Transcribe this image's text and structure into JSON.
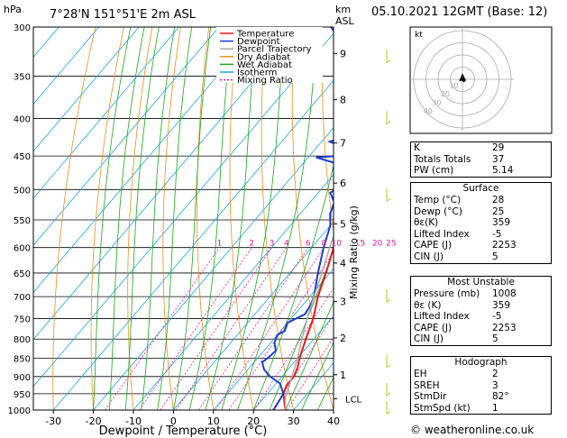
{
  "header": {
    "units_p": "hPa",
    "location": "7°28'N  151°51'E  2m  ASL",
    "units_km": "km",
    "units_asl": "ASL",
    "date": "05.10.2021  12GMT  (Base: 12)"
  },
  "chart_data": {
    "type": "line",
    "xlabel": "Dewpoint / Temperature (°C)",
    "mixing_label": "Mixing Ratio (g/kg)",
    "pressure_levels": [
      300,
      350,
      400,
      450,
      500,
      550,
      600,
      650,
      700,
      750,
      800,
      850,
      900,
      950,
      1000
    ],
    "temp_ticks": [
      -30,
      -20,
      -10,
      0,
      10,
      20,
      30,
      40
    ],
    "xlim": [
      -35,
      40
    ],
    "ylim": [
      1000,
      300
    ],
    "height_ticks": [
      {
        "label": "9",
        "p": 326
      },
      {
        "label": "8",
        "p": 377
      },
      {
        "label": "7",
        "p": 432
      },
      {
        "label": "6",
        "p": 490
      },
      {
        "label": "5",
        "p": 557
      },
      {
        "label": "4",
        "p": 630
      },
      {
        "label": "3",
        "p": 711
      },
      {
        "label": "2",
        "p": 797
      },
      {
        "label": "1",
        "p": 895
      }
    ],
    "lcl": {
      "label": "LCL",
      "p": 965
    },
    "mixing_ratio_labels": [
      "1",
      "2",
      "3",
      "4",
      "6",
      "8",
      "10",
      "15",
      "20",
      "25"
    ],
    "mixing_ratio_values": [
      1,
      2,
      3,
      4,
      6,
      8,
      10,
      15,
      20,
      25
    ],
    "legend": [
      "Temperature",
      "Dewpoint",
      "Parcel Trajectory",
      "Dry Adiabat",
      "Wet Adiabat",
      "Isotherm",
      "Mixing Ratio"
    ],
    "series": [
      {
        "name": "Temperature",
        "color": "#e8191b",
        "points": [
          [
            1000,
            28
          ],
          [
            975,
            26
          ],
          [
            950,
            24
          ],
          [
            925,
            23
          ],
          [
            900,
            23
          ],
          [
            875,
            22
          ],
          [
            850,
            20.5
          ],
          [
            800,
            18
          ],
          [
            750,
            15.5
          ],
          [
            700,
            12
          ],
          [
            650,
            9
          ],
          [
            600,
            5.5
          ],
          [
            550,
            2
          ],
          [
            500,
            -2.5
          ],
          [
            450,
            -8
          ],
          [
            400,
            -14.5
          ],
          [
            350,
            -23
          ],
          [
            300,
            -32
          ]
        ]
      },
      {
        "name": "Dewpoint",
        "color": "#1c3fd1",
        "points": [
          [
            1000,
            25
          ],
          [
            950,
            24
          ],
          [
            920,
            21
          ],
          [
            900,
            17
          ],
          [
            880,
            14
          ],
          [
            860,
            12
          ],
          [
            850,
            12.5
          ],
          [
            830,
            13
          ],
          [
            810,
            11
          ],
          [
            790,
            10
          ],
          [
            780,
            11
          ],
          [
            760,
            10
          ],
          [
            740,
            12.5
          ],
          [
            720,
            12
          ],
          [
            700,
            11
          ],
          [
            650,
            7
          ],
          [
            600,
            3
          ],
          [
            560,
            0
          ],
          [
            540,
            -2.5
          ],
          [
            520,
            -4
          ],
          [
            505,
            -7
          ],
          [
            495,
            -5.5
          ],
          [
            480,
            -7
          ],
          [
            470,
            -11
          ],
          [
            460,
            -12
          ],
          [
            452,
            -18
          ],
          [
            448,
            -8
          ],
          [
            440,
            -12
          ],
          [
            430,
            -18
          ],
          [
            420,
            -13
          ],
          [
            410,
            -17
          ],
          [
            400,
            -19
          ],
          [
            385,
            -22
          ],
          [
            370,
            -25
          ],
          [
            355,
            -27
          ],
          [
            345,
            -27.5
          ],
          [
            330,
            -29
          ],
          [
            310,
            -38
          ],
          [
            300,
            -42
          ]
        ]
      },
      {
        "name": "Parcel Trajectory",
        "color": "#aaaaaa",
        "points": [
          [
            1000,
            28
          ],
          [
            965,
            25.5
          ],
          [
            900,
            22.5
          ],
          [
            850,
            20
          ],
          [
            800,
            17
          ],
          [
            750,
            14
          ],
          [
            700,
            11
          ],
          [
            650,
            8
          ],
          [
            600,
            4.5
          ],
          [
            550,
            1
          ],
          [
            500,
            -3.5
          ],
          [
            450,
            -8.5
          ],
          [
            400,
            -14
          ],
          [
            350,
            -21
          ],
          [
            300,
            -29
          ]
        ]
      }
    ]
  },
  "hodograph": {
    "unit": "kt",
    "ring_labels": [
      "10",
      "20",
      "30",
      "40"
    ]
  },
  "indices": [
    {
      "label": "K",
      "value": "29"
    },
    {
      "label": "Totals Totals",
      "value": "37"
    },
    {
      "label": "PW (cm)",
      "value": "5.14"
    }
  ],
  "surface": {
    "title": "Surface",
    "rows": [
      {
        "label": "Temp (°C)",
        "value": "28"
      },
      {
        "label": "Dewp (°C)",
        "value": "25"
      },
      {
        "label": "θε(K)",
        "value": "359"
      },
      {
        "label": "Lifted Index",
        "value": "-5"
      },
      {
        "label": "CAPE (J)",
        "value": "2253"
      },
      {
        "label": "CIN (J)",
        "value": "5"
      }
    ]
  },
  "most_unstable": {
    "title": "Most Unstable",
    "rows": [
      {
        "label": "Pressure (mb)",
        "value": "1008"
      },
      {
        "label": "θε (K)",
        "value": "359"
      },
      {
        "label": "Lifted Index",
        "value": "-5"
      },
      {
        "label": "CAPE (J)",
        "value": "2253"
      },
      {
        "label": "CIN (J)",
        "value": "5"
      }
    ]
  },
  "hodo_table": {
    "title": "Hodograph",
    "rows": [
      {
        "label": "EH",
        "value": "2"
      },
      {
        "label": "SREH",
        "value": "3"
      },
      {
        "label": "StmDir",
        "value": "82°"
      },
      {
        "label": "StmSpd (kt)",
        "value": "1"
      }
    ]
  },
  "footer": "© weatheronline.co.uk",
  "colors": {
    "temperature": "#e8191b",
    "dewpoint": "#1c3fd1",
    "parcel": "#aaaaaa",
    "dry": "#e8901b",
    "wet": "#1ca51c",
    "isotherm": "#1ca6e0",
    "mixing": "#e0189c"
  }
}
